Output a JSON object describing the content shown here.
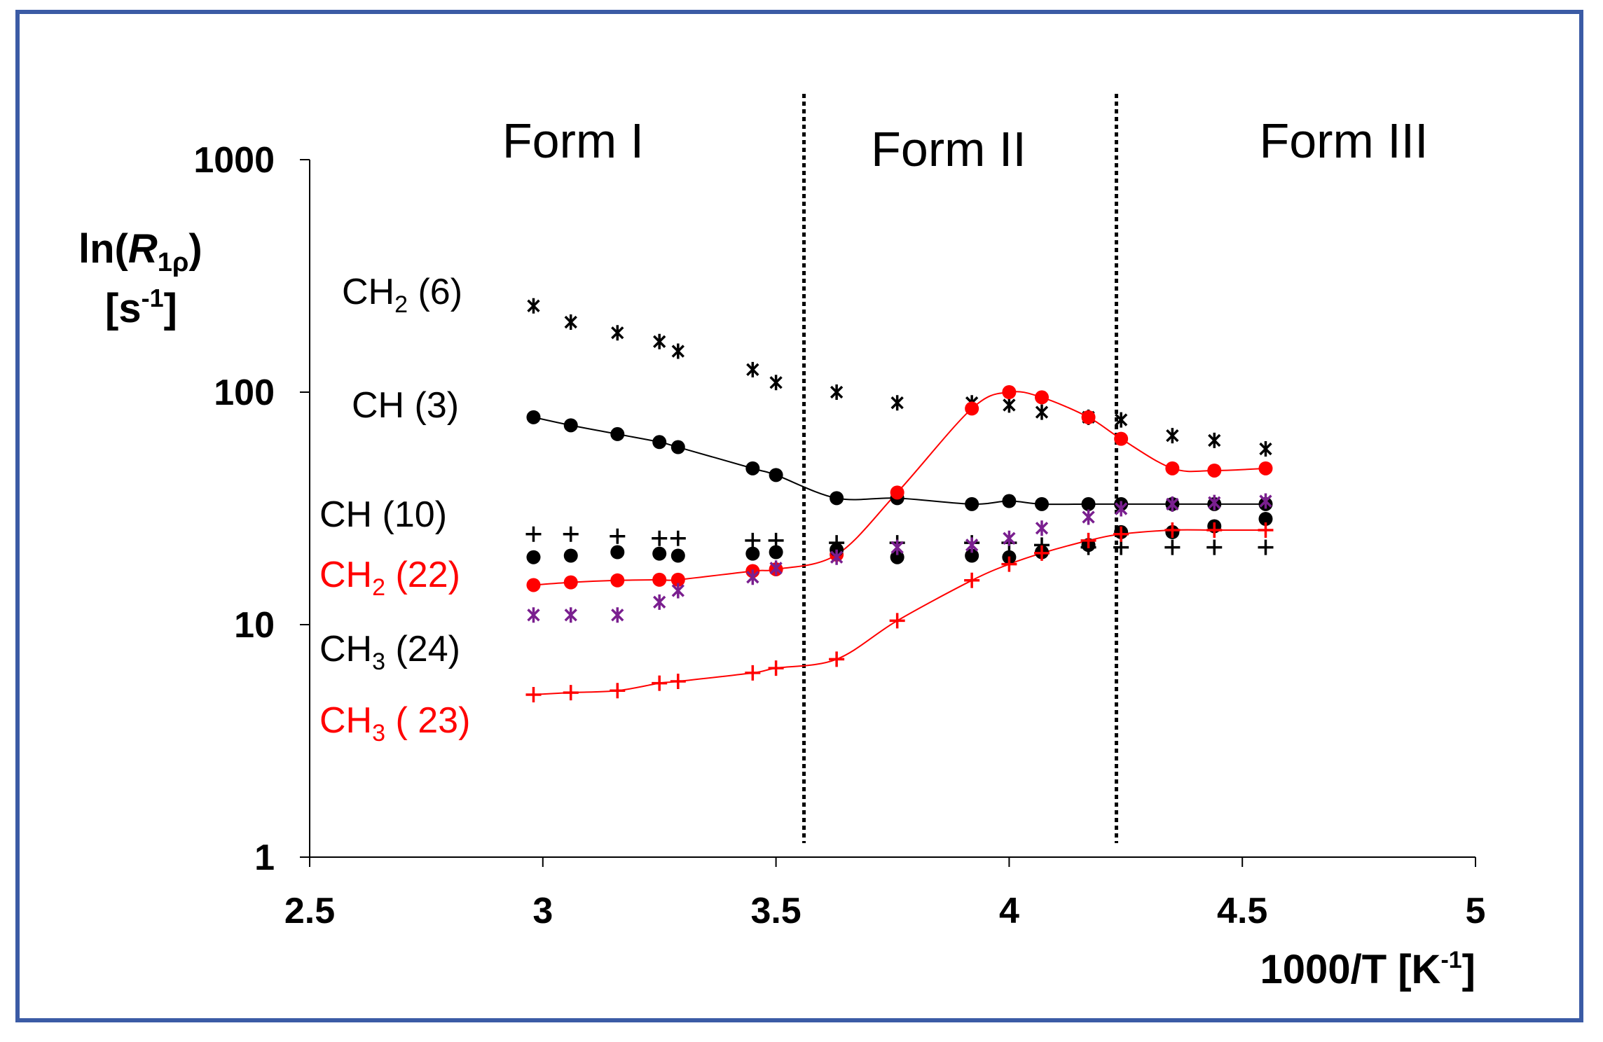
{
  "chart_data": {
    "type": "scatter",
    "xlabel": "1000/T [K",
    "xlabel_sup": "-1",
    "xlabel_end": "]",
    "ylabel_line1_prefix": "ln(",
    "ylabel_line1_italic": "R",
    "ylabel_line1_sub": "1ρ",
    "ylabel_line1_suffix": ")",
    "ylabel_line2_prefix": "[s",
    "ylabel_line2_sup": "-1",
    "ylabel_line2_suffix": "]",
    "xlim": [
      2.5,
      5
    ],
    "ylim": [
      1,
      1000
    ],
    "yscale": "log",
    "xticks": [
      "2.5",
      "3",
      "3.5",
      "4",
      "4.5",
      "5"
    ],
    "yticks": [
      "1",
      "10",
      "100",
      "1000"
    ],
    "phase_boundaries": [
      3.56,
      4.23
    ],
    "phase_labels": [
      {
        "text": "Form I",
        "x": 3.07
      },
      {
        "text": "Form II",
        "x": 3.86
      },
      {
        "text": "Form III",
        "x": 4.72
      }
    ],
    "series": [
      {
        "name": "CH2 (6)",
        "label_base": "CH",
        "label_sub": "2",
        "label_rest": " (6)",
        "color": "#000000",
        "marker": "asterisk",
        "line": false,
        "x": [
          2.98,
          3.06,
          3.16,
          3.25,
          3.29,
          3.45,
          3.5,
          3.63,
          3.76,
          3.92,
          4.0,
          4.07,
          4.17,
          4.24,
          4.35,
          4.44,
          4.55
        ],
        "y": [
          235,
          200,
          180,
          165,
          150,
          125,
          110,
          100,
          90,
          90,
          88,
          82,
          78,
          76,
          65,
          62,
          57
        ]
      },
      {
        "name": "CH (3)",
        "label_base": "CH",
        "label_sub": "",
        "label_rest": " (3)",
        "color": "#000000",
        "marker": "circle",
        "line": true,
        "x": [
          2.98,
          3.06,
          3.16,
          3.25,
          3.29,
          3.45,
          3.5,
          3.63,
          3.76,
          3.92,
          4.0,
          4.07,
          4.17,
          4.24,
          4.35,
          4.44,
          4.55
        ],
        "y": [
          78,
          72,
          66,
          61,
          58,
          47,
          44,
          35,
          35,
          33,
          34,
          33,
          33,
          33,
          33,
          33,
          33
        ]
      },
      {
        "name": "CH (10)",
        "label_base": "CH",
        "label_sub": "",
        "label_rest": " (10)",
        "color": "#000000",
        "marker": "plus",
        "line": false,
        "x": [
          2.98,
          3.06,
          3.16,
          3.25,
          3.29,
          3.45,
          3.5,
          3.63,
          3.76,
          3.92,
          4.0,
          4.07,
          4.17,
          4.24,
          4.35,
          4.44,
          4.55
        ],
        "y": [
          24.5,
          24.5,
          24,
          23.5,
          23.5,
          23,
          23,
          22.5,
          22.5,
          22.5,
          22.5,
          22,
          21.5,
          21.5,
          21.5,
          21.5,
          21.5
        ]
      },
      {
        "name": "CH2 (22)",
        "label_base": "CH",
        "label_sub": "2",
        "label_rest": " (22)",
        "color": "#ff0000",
        "marker": "circle",
        "line": true,
        "x": [
          2.98,
          3.06,
          3.16,
          3.25,
          3.29,
          3.45,
          3.5,
          3.63,
          3.76,
          3.92,
          4.0,
          4.07,
          4.17,
          4.24,
          4.35,
          4.44,
          4.55
        ],
        "y": [
          14.8,
          15.2,
          15.5,
          15.6,
          15.6,
          17,
          17.3,
          20,
          37,
          85,
          100,
          95,
          78,
          63,
          47,
          46,
          47
        ]
      },
      {
        "name": "CH3 (24)",
        "label_base": "CH",
        "label_sub": "3",
        "label_rest": " (24)",
        "color": "#000000",
        "marker": "circle",
        "line": false,
        "x": [
          2.98,
          3.06,
          3.16,
          3.25,
          3.29,
          3.45,
          3.5,
          3.63,
          3.76,
          3.92,
          4.0,
          4.07,
          4.17,
          4.24,
          4.35,
          4.44,
          4.55
        ],
        "y": [
          19.5,
          19.8,
          20.5,
          20.2,
          19.8,
          20.2,
          20.5,
          21,
          19.5,
          19.8,
          19.5,
          20.5,
          22,
          25,
          25,
          26.5,
          28.5
        ]
      },
      {
        "name": "CH3 ( 23)",
        "label_base": "CH",
        "label_sub": "3",
        "label_rest": " ( 23)",
        "color": "#ff0000",
        "marker": "plus",
        "line": true,
        "x": [
          2.98,
          3.06,
          3.16,
          3.25,
          3.29,
          3.45,
          3.5,
          3.63,
          3.76,
          3.92,
          4.0,
          4.07,
          4.17,
          4.24,
          4.35,
          4.44,
          4.55
        ],
        "y": [
          5,
          5.1,
          5.2,
          5.6,
          5.7,
          6.2,
          6.5,
          7.1,
          10.4,
          15.5,
          18.2,
          20.3,
          23,
          24.5,
          25.5,
          25.5,
          25.5
        ]
      },
      {
        "name": "purple asterisk",
        "label_base": "",
        "label_sub": "",
        "label_rest": "",
        "color": "#7a1f8f",
        "marker": "asterisk",
        "line": false,
        "x": [
          2.98,
          3.06,
          3.16,
          3.25,
          3.29,
          3.45,
          3.5,
          3.63,
          3.76,
          3.92,
          4.0,
          4.07,
          4.17,
          4.24,
          4.35,
          4.44,
          4.55
        ],
        "y": [
          11,
          11,
          11,
          12.5,
          14,
          16,
          17.5,
          19.5,
          21.5,
          22,
          23.5,
          26,
          29,
          31.5,
          33,
          33.5,
          34
        ]
      }
    ]
  }
}
